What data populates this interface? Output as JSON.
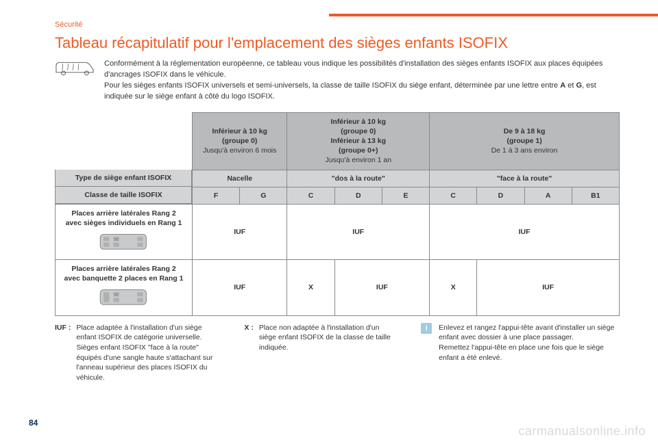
{
  "page": {
    "section_label": "Sécurité",
    "title": "Tableau récapitulatif pour l'emplacement des sièges enfants ISOFIX",
    "page_number": "84",
    "watermark": "carmanualsonline.info"
  },
  "intro": {
    "p1": "Conformément à la réglementation européenne, ce tableau vous indique les possibilités d'installation des sièges enfants ISOFIX aux places équipées d'ancrages ISOFIX dans le véhicule.",
    "p2a": "Pour les sièges enfants ISOFIX universels et semi-universels, la classe de taille ISOFIX du siège enfant, déterminée par une lettre entre ",
    "p2_A": "A",
    "p2_mid": " et ",
    "p2_G": "G",
    "p2b": ", est indiquée sur le siège enfant à côté du logo ISOFIX."
  },
  "table": {
    "weight_groups": {
      "g0": {
        "l1": "Inférieur à 10 kg",
        "l2": "(groupe 0)",
        "l3": "Jusqu'à environ 6 mois"
      },
      "g0plus": {
        "l1": "Inférieur à 10 kg",
        "l2": "(groupe 0)",
        "l3": "Inférieur à 13 kg",
        "l4": "(groupe 0+)",
        "l5": "Jusqu'à environ 1 an"
      },
      "g1": {
        "l1": "De 9 à 18 kg",
        "l2": "(groupe 1)",
        "l3": "De 1 à 3 ans environ"
      }
    },
    "row_type_label": "Type de siège enfant ISOFIX",
    "type_nacelle": "Nacelle",
    "type_dos": "\"dos à la route\"",
    "type_face": "\"face à la route\"",
    "row_class_label": "Classe de taille ISOFIX",
    "classes": {
      "c1": "F",
      "c2": "G",
      "c3": "C",
      "c4": "D",
      "c5": "E",
      "c6": "C",
      "c7": "D",
      "c8": "A",
      "c9": "B1"
    },
    "row1_label_l1": "Places arrière latérales Rang 2",
    "row1_label_l2": "avec sièges individuels en Rang 1",
    "row1": {
      "v1": "IUF",
      "v2": "IUF",
      "v3": "IUF"
    },
    "row2_label_l1": "Places arrière latérales Rang 2",
    "row2_label_l2": "avec banquette 2 places en Rang 1",
    "row2": {
      "v1": "IUF",
      "v2": "X",
      "v3": "IUF",
      "v4": "X",
      "v5": "IUF"
    }
  },
  "legend": {
    "iuf_key": "IUF :",
    "iuf_text": "Place adaptée à l'installation d'un siège enfant ISOFIX de catégorie universelle. Sièges enfant ISOFIX \"face à la route\" équipés d'une sangle haute s'attachant sur l'anneau supérieur des places ISOFIX du véhicule.",
    "x_key": "X :",
    "x_text": "Place non adaptée à l'installation d'un siège enfant ISOFIX de la classe de taille indiquée."
  },
  "info": {
    "p1": "Enlevez et rangez l'appui-tête avant d'installer un siège enfant avec dossier à une place passager.",
    "p2": "Remettez l'appui-tête en place une fois que le siège enfant a été enlevé."
  },
  "colors": {
    "accent": "#f05a22",
    "hdr_dark": "#b9babc",
    "hdr_light": "#d3d4d6",
    "border": "#888888",
    "info_bg": "#9fccdf",
    "pagenum": "#0a2a5c",
    "watermark": "#d9d9d9",
    "van_fill": "#c9cacb",
    "van_stroke": "#7a7a7a"
  }
}
